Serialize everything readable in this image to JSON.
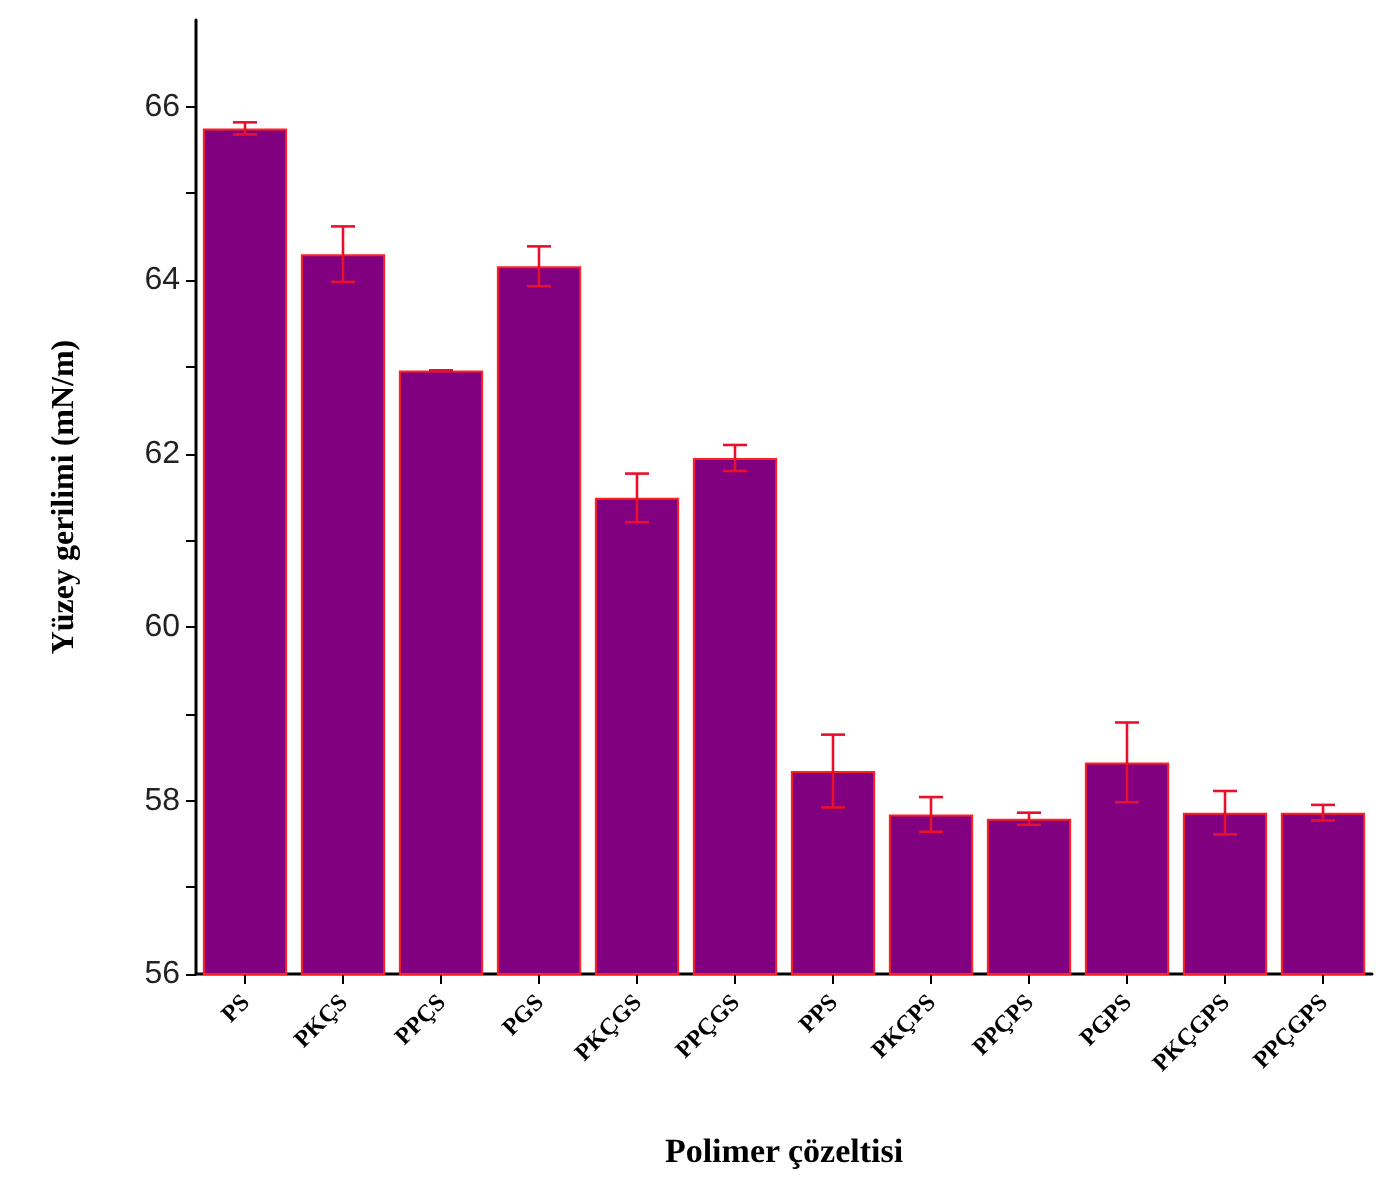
{
  "chart_data": {
    "type": "bar",
    "xlabel": "Polimer çözeltisi",
    "ylabel": "Yüzey gerilimi (mN/m)",
    "categories": [
      "PS",
      "PKÇS",
      "PPÇS",
      "PGS",
      "PKÇGS",
      "PPÇGS",
      "PPS",
      "PKÇPS",
      "PPÇPS",
      "PGPS",
      "PKÇGPS",
      "PPÇGPS"
    ],
    "values": [
      65.75,
      64.3,
      62.96,
      64.16,
      61.49,
      61.95,
      58.34,
      57.84,
      57.79,
      58.44,
      57.86,
      57.86
    ],
    "errors": [
      0.07,
      0.32,
      0,
      0.23,
      0.28,
      0.15,
      0.42,
      0.2,
      0.07,
      0.46,
      0.25,
      0.09
    ],
    "color": "#800080",
    "ylim": [
      56,
      67
    ],
    "yticks": [
      56,
      {
        "value": 57,
        "label": null
      },
      58,
      {
        "value": 59,
        "label": null
      },
      60,
      {
        "value": 61,
        "label": null
      },
      62,
      {
        "value": 63,
        "label": null
      },
      64,
      {
        "value": 65,
        "label": null
      },
      66
    ],
    "grid": false
  }
}
